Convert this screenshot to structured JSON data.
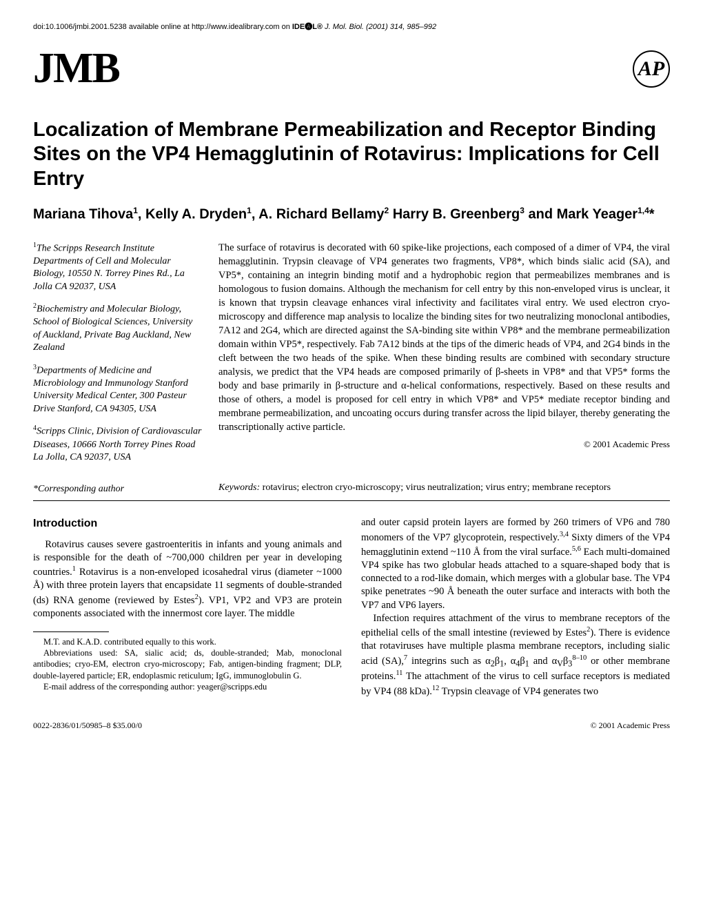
{
  "header": {
    "doi": "doi:10.1006/jmbi.2001.5238 available online at http://www.idealibrary.com on ",
    "ideal_brand": "IDE🅐L®",
    "journal_ref": "J. Mol. Biol. (2001) 314, 985–992"
  },
  "logos": {
    "jmb": "JMB",
    "ap": "AP"
  },
  "title": "Localization of Membrane Permeabilization and Receptor Binding Sites on the VP4 Hemagglutinin of Rotavirus: Implications for Cell Entry",
  "authors_html": "Mariana Tihova<sup>1</sup>, Kelly A. Dryden<sup>1</sup>, A. Richard Bellamy<sup>2</sup> Harry B. Greenberg<sup>3</sup> and Mark Yeager<sup>1,4</sup>*",
  "affiliations": [
    "<sup>1</sup>The Scripps Research Institute Departments of Cell and Molecular Biology, 10550 N. Torrey Pines Rd., La Jolla CA 92037, USA",
    "<sup>2</sup>Biochemistry and Molecular Biology, School of Biological Sciences, University of Auckland, Private Bag Auckland, New Zealand",
    "<sup>3</sup>Departments of Medicine and Microbiology and Immunology Stanford University Medical Center, 300 Pasteur Drive Stanford, CA 94305, USA",
    "<sup>4</sup>Scripps Clinic, Division of Cardiovascular Diseases, 10666 North Torrey Pines Road La Jolla, CA 92037, USA"
  ],
  "abstract": "The surface of rotavirus is decorated with 60 spike-like projections, each composed of a dimer of VP4, the viral hemagglutinin. Trypsin cleavage of VP4 generates two fragments, VP8*, which binds sialic acid (SA), and VP5*, containing an integrin binding motif and a hydrophobic region that permeabilizes membranes and is homologous to fusion domains. Although the mechanism for cell entry by this non-enveloped virus is unclear, it is known that trypsin cleavage enhances viral infectivity and facilitates viral entry. We used electron cryo-microscopy and difference map analysis to localize the binding sites for two neutralizing monoclonal antibodies, 7A12 and 2G4, which are directed against the SA-binding site within VP8* and the membrane permeabilization domain within VP5*, respectively. Fab 7A12 binds at the tips of the dimeric heads of VP4, and 2G4 binds in the cleft between the two heads of the spike. When these binding results are combined with secondary structure analysis, we predict that the VP4 heads are composed primarily of β-sheets in VP8* and that VP5* forms the body and base primarily in β-structure and α-helical conformations, respectively. Based on these results and those of others, a model is proposed for cell entry in which VP8* and VP5* mediate receptor binding and membrane permeabilization, and uncoating occurs during transfer across the lipid bilayer, thereby generating the transcriptionally active particle.",
  "copyright_abstract": "© 2001 Academic Press",
  "keywords_label": "Keywords:",
  "keywords": "rotavirus; electron cryo-microscopy; virus neutralization; virus entry; membrane receptors",
  "corresponding": "*Corresponding author",
  "section_intro": "Introduction",
  "body_left_p1": "Rotavirus causes severe gastroenteritis in infants and young animals and is responsible for the death of ~700,000 children per year in developing countries.<sup>1</sup> Rotavirus is a non-enveloped icosahedral virus (diameter ~1000 Å) with three protein layers that encapsidate 11 segments of double-stranded (ds) RNA genome (reviewed by Estes<sup>2</sup>). VP1, VP2 and VP3 are protein components associated with the innermost core layer. The middle",
  "footnotes": [
    "M.T. and K.A.D. contributed equally to this work.",
    "Abbreviations used: SA, sialic acid; ds, double-stranded; Mab, monoclonal antibodies; cryo-EM, electron cryo-microscopy; Fab, antigen-binding fragment; DLP, double-layered particle; ER, endoplasmic reticulum; IgG, immunoglobulin G.",
    "E-mail address of the corresponding author: yeager@scripps.edu"
  ],
  "body_right_p1": "and outer capsid protein layers are formed by 260 trimers of VP6 and 780 monomers of the VP7 glycoprotein, respectively.<sup>3,4</sup> Sixty dimers of the VP4 hemagglutinin extend ~110 Å from the viral surface.<sup>5,6</sup> Each multi-domained VP4 spike has two globular heads attached to a square-shaped body that is connected to a rod-like domain, which merges with a globular base. The VP4 spike penetrates ~90 Å beneath the outer surface and interacts with both the VP7 and VP6 layers.",
  "body_right_p2": "Infection requires attachment of the virus to membrane receptors of the epithelial cells of the small intestine (reviewed by Estes<sup>2</sup>). There is evidence that rotaviruses have multiple plasma membrane receptors, including sialic acid (SA),<sup>7</sup> integrins such as α<sub>2</sub>β<sub>1</sub>, α<sub>4</sub>β<sub>1</sub> and α<sub>V</sub>β<sub>3</sub><sup>8–10</sup> or other membrane proteins.<sup>11</sup> The attachment of the virus to cell surface receptors is mediated by VP4 (88 kDa).<sup>12</sup> Trypsin cleavage of VP4 generates two",
  "footer": {
    "left": "0022-2836/01/50985–8 $35.00/0",
    "right": "© 2001 Academic Press"
  }
}
